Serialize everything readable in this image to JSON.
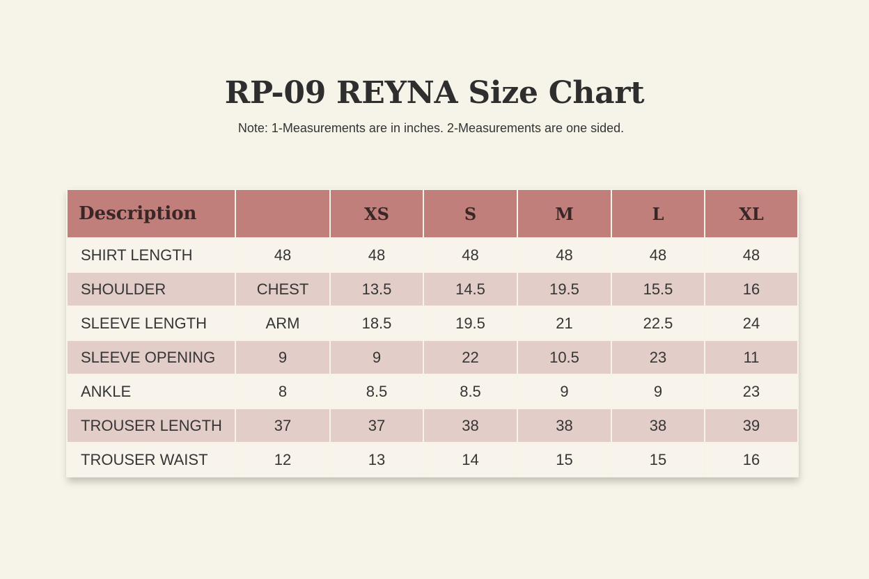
{
  "page": {
    "title": "RP-09 REYNA Size Chart",
    "note": "Note: 1-Measurements are in inches. 2-Measurements are one sided."
  },
  "colors": {
    "background": "#f6f3e9",
    "header": "#c17f7b",
    "row_light": "#f8f4ec",
    "row_tinted": "#e3cdc8"
  },
  "table": {
    "headers": [
      "Description",
      "",
      "XS",
      "S",
      "M",
      "L",
      "XL"
    ],
    "rows": [
      [
        "SHIRT LENGTH",
        "48",
        "48",
        "48",
        "48",
        "48",
        "48"
      ],
      [
        "SHOULDER",
        "CHEST",
        "13.5",
        "14.5",
        "19.5",
        "15.5",
        "16"
      ],
      [
        "SLEEVE LENGTH",
        "ARM",
        "18.5",
        "19.5",
        "21",
        "22.5",
        "24"
      ],
      [
        "SLEEVE OPENING",
        "9",
        "9",
        "22",
        "10.5",
        "23",
        "11"
      ],
      [
        "ANKLE",
        "8",
        "8.5",
        "8.5",
        "9",
        "9",
        "23"
      ],
      [
        "TROUSER LENGTH",
        "37",
        "37",
        "38",
        "38",
        "38",
        "39"
      ],
      [
        "TROUSER WAIST",
        "12",
        "13",
        "14",
        "15",
        "15",
        "16"
      ]
    ]
  }
}
